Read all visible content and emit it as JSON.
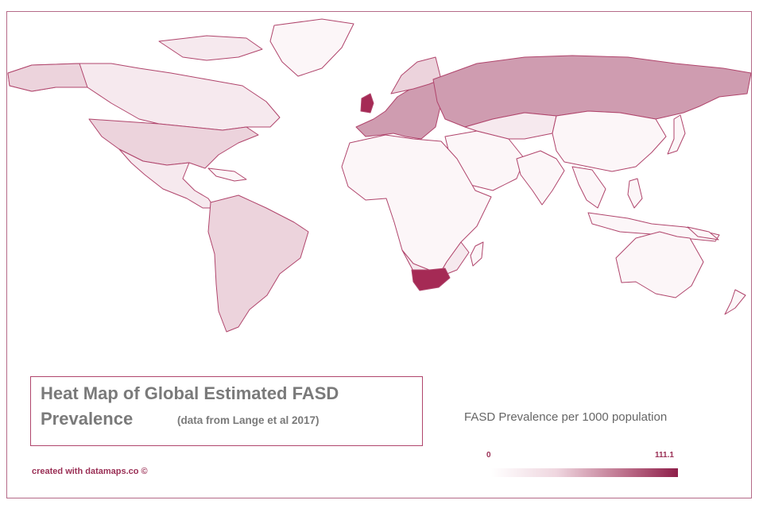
{
  "title": {
    "line1": "Heat Map of Global Estimated FASD",
    "line2": "Prevalence",
    "subtitle": "(data from Lange et al 2017)"
  },
  "credit": "created with datamaps.co ©",
  "legend": {
    "title": "FASD Prevalence per 1000 population",
    "min_label": "0",
    "max_label": "111.1",
    "min_color": "#ffffff",
    "max_color": "#8e1f4a"
  },
  "colors": {
    "border": "#b0456c",
    "frame": "#b56a88",
    "highlight": "#a52a55",
    "medium": "#cf9cb0",
    "light": "#ecd3dc",
    "very_light": "#f6e9ee",
    "lightest": "#fcf6f8",
    "text_gray": "#7a7a7a",
    "text_red": "#9a2f55"
  }
}
